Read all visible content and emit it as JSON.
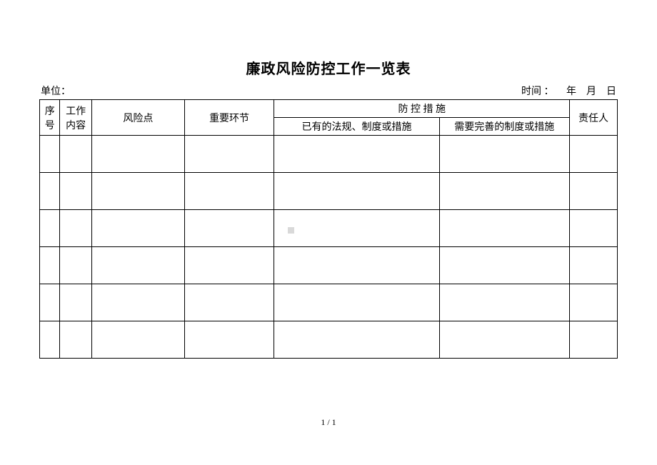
{
  "title": "廉政风险防控工作一览表",
  "meta": {
    "unit_label": "单位：",
    "date_label": "时间 ：     年    月    日"
  },
  "table": {
    "headers": {
      "seq": "序号",
      "content": "工作内容",
      "risk": "风险点",
      "step": "重要环节",
      "measure_group": "防  控  措  施",
      "measure_existing": "已有的法规、制度或措施",
      "measure_needed": "需要完善的制度或措施",
      "person": "责任人"
    },
    "col_widths": {
      "seq": 28,
      "content": 44,
      "risk": 128,
      "step": 124,
      "measure_a": 228,
      "measure_b": 180,
      "person": 66
    },
    "rows": [
      {
        "seq": "",
        "content": "",
        "risk": "",
        "step": "",
        "measure_a": "",
        "measure_b": "",
        "person": ""
      },
      {
        "seq": "",
        "content": "",
        "risk": "",
        "step": "",
        "measure_a": "",
        "measure_b": "",
        "person": ""
      },
      {
        "seq": "",
        "content": "",
        "risk": "",
        "step": "",
        "measure_a": "",
        "measure_b": "",
        "person": ""
      },
      {
        "seq": "",
        "content": "",
        "risk": "",
        "step": "",
        "measure_a": "",
        "measure_b": "",
        "person": ""
      },
      {
        "seq": "",
        "content": "",
        "risk": "",
        "step": "",
        "measure_a": "",
        "measure_b": "",
        "person": ""
      },
      {
        "seq": "",
        "content": "",
        "risk": "",
        "step": "",
        "measure_a": "",
        "measure_b": "",
        "person": ""
      }
    ]
  },
  "page_number": "1 / 1",
  "colors": {
    "background": "#ffffff",
    "border": "#000000",
    "watermark": "#d9d9d9",
    "text": "#000000"
  },
  "fonts": {
    "title_size": 20,
    "body_size": 14,
    "page_num_size": 12,
    "family": "SimSun"
  }
}
